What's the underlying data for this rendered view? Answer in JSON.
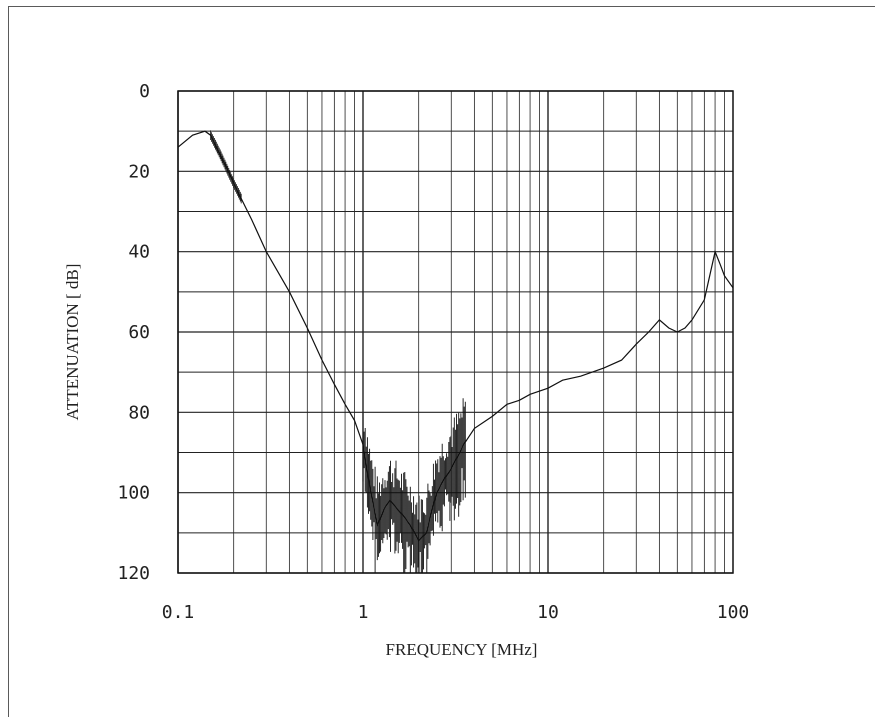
{
  "chart_data": {
    "type": "line",
    "title": "",
    "xlabel": "FREQUENCY [MHz]",
    "ylabel": "ATTENUATION [ dB]",
    "x_scale": "log",
    "xlim": [
      0.1,
      100
    ],
    "ylim": [
      0,
      120
    ],
    "y_inverted": true,
    "grid": true,
    "x_ticks": [
      "0.1",
      "1",
      "10",
      "100"
    ],
    "y_ticks": [
      "0",
      "20",
      "40",
      "60",
      "80",
      "100",
      "120"
    ],
    "series": [
      {
        "name": "",
        "x": [
          0.1,
          0.12,
          0.14,
          0.15,
          0.17,
          0.2,
          0.25,
          0.3,
          0.4,
          0.5,
          0.6,
          0.7,
          0.8,
          0.9,
          1.0,
          1.1,
          1.2,
          1.3,
          1.4,
          1.6,
          1.8,
          2.0,
          2.2,
          2.5,
          2.8,
          3.0,
          3.5,
          4,
          5,
          6,
          7,
          8,
          10,
          12,
          15,
          20,
          25,
          30,
          35,
          40,
          45,
          50,
          55,
          60,
          70,
          80,
          85,
          90,
          100
        ],
        "y": [
          14,
          11,
          10,
          11,
          16,
          23,
          32,
          40,
          50,
          59,
          67,
          73,
          78,
          82,
          88,
          100,
          108,
          104,
          102,
          105,
          108,
          112,
          110,
          100,
          96,
          94,
          88,
          84,
          81,
          78,
          77,
          75.5,
          74,
          72,
          71,
          69,
          67,
          63,
          60,
          57,
          59,
          60,
          59,
          57,
          52,
          40,
          43,
          46,
          49
        ]
      }
    ]
  }
}
